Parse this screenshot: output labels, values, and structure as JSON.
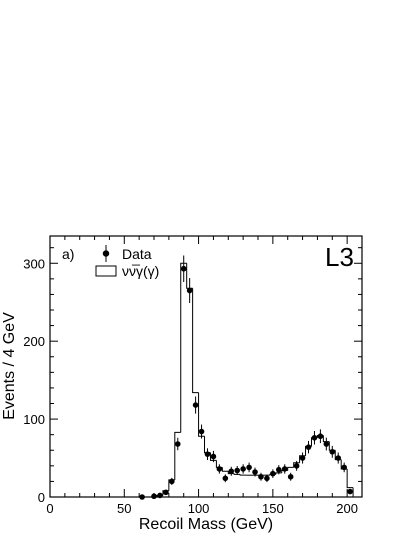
{
  "chart_data": {
    "type": "histogram+scatter",
    "panel_label": "a)",
    "experiment_label": "L3",
    "xlabel": "Recoil Mass (GeV)",
    "ylabel": "Events / 4 GeV",
    "xlim": [
      0,
      210
    ],
    "ylim": [
      0,
      335
    ],
    "x_ticks": [
      0,
      50,
      100,
      150,
      200
    ],
    "y_ticks": [
      0,
      100,
      200,
      300
    ],
    "legend": {
      "placement": "top-left",
      "entries": [
        {
          "label": "Data",
          "marker": "point-with-error"
        },
        {
          "label": "νν̅γ(γ)",
          "marker": "open-box"
        }
      ]
    },
    "histogram": {
      "name": "νν̅γ(γ)",
      "bin_width": 4,
      "bins": [
        {
          "lo": 60,
          "hi": 64,
          "value": 0
        },
        {
          "lo": 64,
          "hi": 68,
          "value": 0
        },
        {
          "lo": 68,
          "hi": 72,
          "value": 0
        },
        {
          "lo": 72,
          "hi": 76,
          "value": 2
        },
        {
          "lo": 76,
          "hi": 80,
          "value": 8
        },
        {
          "lo": 80,
          "hi": 84,
          "value": 22
        },
        {
          "lo": 84,
          "hi": 88,
          "value": 83
        },
        {
          "lo": 88,
          "hi": 92,
          "value": 300
        },
        {
          "lo": 92,
          "hi": 96,
          "value": 268
        },
        {
          "lo": 96,
          "hi": 100,
          "value": 134
        },
        {
          "lo": 100,
          "hi": 104,
          "value": 78
        },
        {
          "lo": 104,
          "hi": 108,
          "value": 57
        },
        {
          "lo": 108,
          "hi": 112,
          "value": 47
        },
        {
          "lo": 112,
          "hi": 116,
          "value": 38
        },
        {
          "lo": 116,
          "hi": 120,
          "value": 33
        },
        {
          "lo": 120,
          "hi": 124,
          "value": 30
        },
        {
          "lo": 124,
          "hi": 128,
          "value": 29
        },
        {
          "lo": 128,
          "hi": 132,
          "value": 28
        },
        {
          "lo": 132,
          "hi": 136,
          "value": 28
        },
        {
          "lo": 136,
          "hi": 140,
          "value": 28
        },
        {
          "lo": 140,
          "hi": 144,
          "value": 28
        },
        {
          "lo": 144,
          "hi": 148,
          "value": 28
        },
        {
          "lo": 148,
          "hi": 152,
          "value": 29
        },
        {
          "lo": 152,
          "hi": 156,
          "value": 31
        },
        {
          "lo": 156,
          "hi": 160,
          "value": 34
        },
        {
          "lo": 160,
          "hi": 164,
          "value": 38
        },
        {
          "lo": 164,
          "hi": 168,
          "value": 44
        },
        {
          "lo": 168,
          "hi": 172,
          "value": 53
        },
        {
          "lo": 172,
          "hi": 176,
          "value": 65
        },
        {
          "lo": 176,
          "hi": 180,
          "value": 76
        },
        {
          "lo": 180,
          "hi": 184,
          "value": 79
        },
        {
          "lo": 184,
          "hi": 188,
          "value": 71
        },
        {
          "lo": 188,
          "hi": 192,
          "value": 60
        },
        {
          "lo": 192,
          "hi": 196,
          "value": 48
        },
        {
          "lo": 196,
          "hi": 200,
          "value": 36
        },
        {
          "lo": 200,
          "hi": 204,
          "value": 12
        },
        {
          "lo": 204,
          "hi": 208,
          "value": 0
        }
      ]
    },
    "series": [
      {
        "name": "Data",
        "points": [
          {
            "x": 62,
            "y": 0,
            "err": 0
          },
          {
            "x": 70,
            "y": 1,
            "err": 1
          },
          {
            "x": 74,
            "y": 2,
            "err": 1.5
          },
          {
            "x": 78,
            "y": 6,
            "err": 2.5
          },
          {
            "x": 82,
            "y": 20,
            "err": 4.5
          },
          {
            "x": 86,
            "y": 68,
            "err": 8
          },
          {
            "x": 90,
            "y": 293,
            "err": 17
          },
          {
            "x": 94,
            "y": 265,
            "err": 16
          },
          {
            "x": 98,
            "y": 118,
            "err": 11
          },
          {
            "x": 102,
            "y": 84,
            "err": 9
          },
          {
            "x": 106,
            "y": 55,
            "err": 7.5
          },
          {
            "x": 110,
            "y": 52,
            "err": 7.2
          },
          {
            "x": 114,
            "y": 36,
            "err": 6
          },
          {
            "x": 118,
            "y": 24,
            "err": 5
          },
          {
            "x": 122,
            "y": 33,
            "err": 5.8
          },
          {
            "x": 126,
            "y": 34,
            "err": 5.8
          },
          {
            "x": 130,
            "y": 36,
            "err": 6
          },
          {
            "x": 134,
            "y": 38,
            "err": 6.2
          },
          {
            "x": 138,
            "y": 32,
            "err": 5.7
          },
          {
            "x": 142,
            "y": 26,
            "err": 5.1
          },
          {
            "x": 146,
            "y": 24,
            "err": 4.9
          },
          {
            "x": 150,
            "y": 30,
            "err": 5.5
          },
          {
            "x": 154,
            "y": 35,
            "err": 5.9
          },
          {
            "x": 158,
            "y": 36,
            "err": 6
          },
          {
            "x": 162,
            "y": 26,
            "err": 5.1
          },
          {
            "x": 166,
            "y": 40,
            "err": 6.3
          },
          {
            "x": 170,
            "y": 50,
            "err": 7.1
          },
          {
            "x": 174,
            "y": 64,
            "err": 8
          },
          {
            "x": 178,
            "y": 76,
            "err": 8.7
          },
          {
            "x": 182,
            "y": 78,
            "err": 8.8
          },
          {
            "x": 186,
            "y": 68,
            "err": 8.2
          },
          {
            "x": 190,
            "y": 58,
            "err": 7.6
          },
          {
            "x": 194,
            "y": 50,
            "err": 7.1
          },
          {
            "x": 198,
            "y": 38,
            "err": 6.2
          },
          {
            "x": 202,
            "y": 7,
            "err": 2.6
          }
        ]
      }
    ]
  }
}
